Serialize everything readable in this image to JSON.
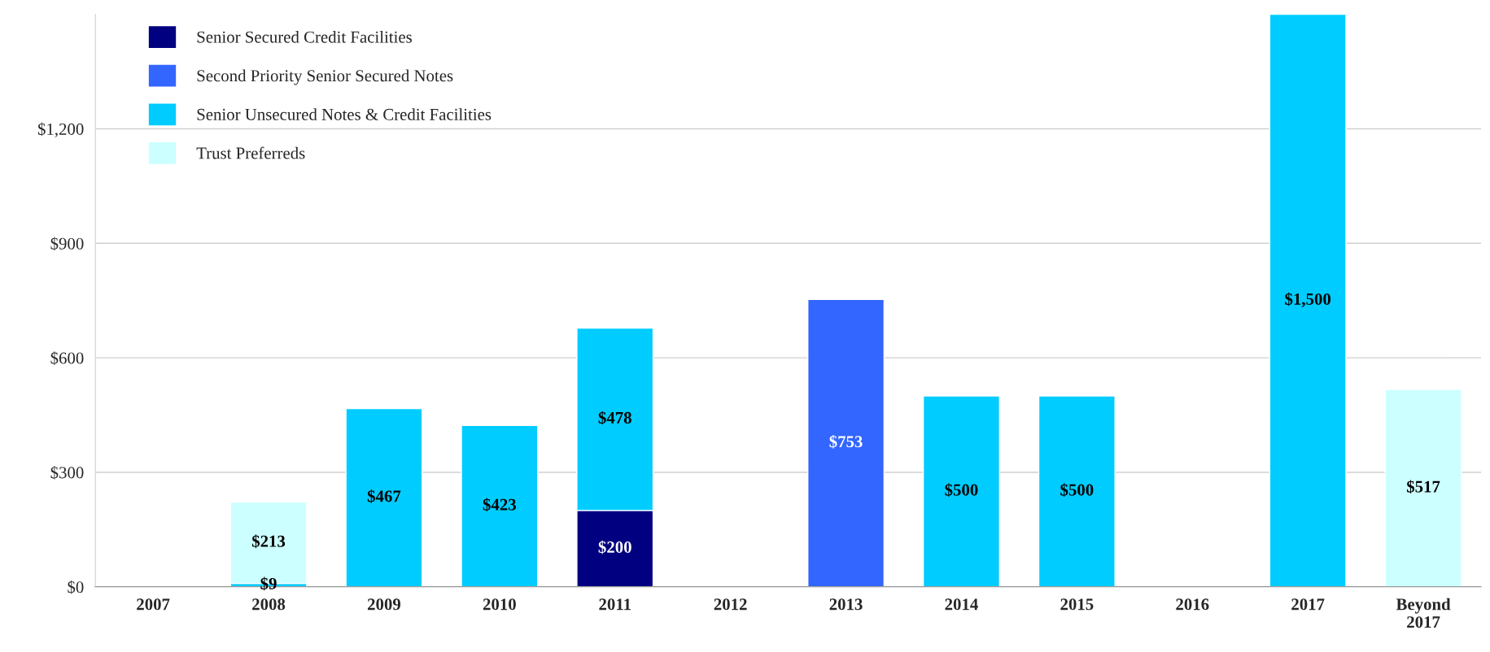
{
  "chart_data": {
    "type": "bar",
    "stacked": true,
    "categories": [
      "2007",
      "2008",
      "2009",
      "2010",
      "2011",
      "2012",
      "2013",
      "2014",
      "2015",
      "2016",
      "2017",
      "Beyond\n2017"
    ],
    "series": [
      {
        "name": "Senior Secured Credit Facilities",
        "color": "#000080",
        "values": [
          null,
          null,
          null,
          null,
          200,
          null,
          null,
          null,
          null,
          null,
          null,
          null
        ],
        "value_labels": [
          null,
          null,
          null,
          null,
          "$200",
          null,
          null,
          null,
          null,
          null,
          null,
          null
        ]
      },
      {
        "name": "Second Priority Senior Secured Notes",
        "color": "#3366ff",
        "values": [
          null,
          null,
          null,
          null,
          null,
          null,
          753,
          null,
          null,
          null,
          null,
          null
        ],
        "value_labels": [
          null,
          null,
          null,
          null,
          null,
          null,
          "$753",
          null,
          null,
          null,
          null,
          null
        ]
      },
      {
        "name": "Senior Unsecured Notes & Credit Facilities",
        "color": "#00ccff",
        "values": [
          null,
          9,
          467,
          423,
          478,
          null,
          null,
          500,
          500,
          null,
          1500,
          null
        ],
        "value_labels": [
          null,
          "$9",
          "$467",
          "$423",
          "$478",
          null,
          null,
          "$500",
          "$500",
          null,
          "$1,500",
          null
        ]
      },
      {
        "name": "Trust Preferreds",
        "color": "#ccffff",
        "values": [
          null,
          213,
          null,
          null,
          null,
          null,
          null,
          null,
          null,
          null,
          null,
          517
        ],
        "value_labels": [
          null,
          "$213",
          null,
          null,
          null,
          null,
          null,
          null,
          null,
          null,
          null,
          "$517"
        ]
      }
    ],
    "ylim": [
      0,
      1500
    ],
    "yticks": [
      {
        "value": 0,
        "label": "$0"
      },
      {
        "value": 300,
        "label": "$300"
      },
      {
        "value": 600,
        "label": "$600"
      },
      {
        "value": 900,
        "label": "$900"
      },
      {
        "value": 1200,
        "label": "$1,200"
      }
    ],
    "grid": "y",
    "legend": "top left"
  }
}
